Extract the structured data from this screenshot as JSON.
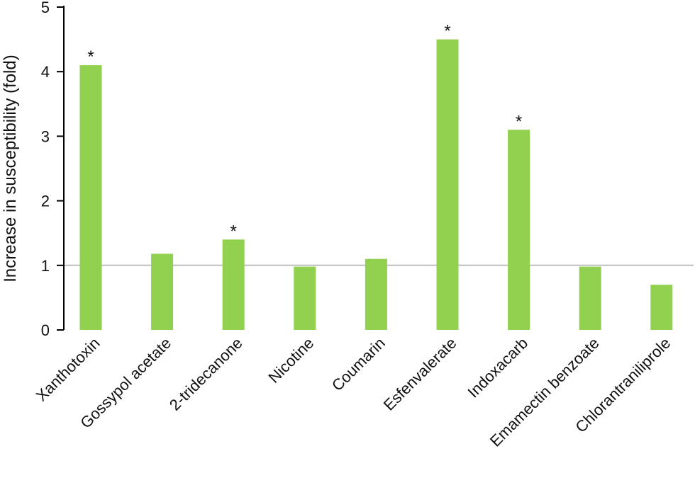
{
  "chart_data": {
    "type": "bar",
    "title": "",
    "xlabel": "",
    "ylabel": "Increase in susceptibility (fold)",
    "ylim": [
      0,
      5
    ],
    "yticks": [
      0,
      1,
      2,
      3,
      4,
      5
    ],
    "categories": [
      "Xanthotoxin",
      "Gossypol acetate",
      "2-tridecanone",
      "Nicotine",
      "Coumarin",
      "Esfenvalerate",
      "Indoxacarb",
      "Emamectin benzoate",
      "Chlorantraniliprole"
    ],
    "values": [
      4.1,
      1.18,
      1.4,
      0.98,
      1.1,
      4.5,
      3.1,
      0.98,
      0.7
    ],
    "significant": [
      true,
      false,
      true,
      false,
      false,
      true,
      true,
      false,
      false
    ],
    "significance_marker": "*",
    "reference_line": 1,
    "grid": false,
    "legend": "none",
    "colors": {
      "bar": "#92d050",
      "reference_line": "#bfbfbf",
      "axis": "#000000"
    }
  }
}
